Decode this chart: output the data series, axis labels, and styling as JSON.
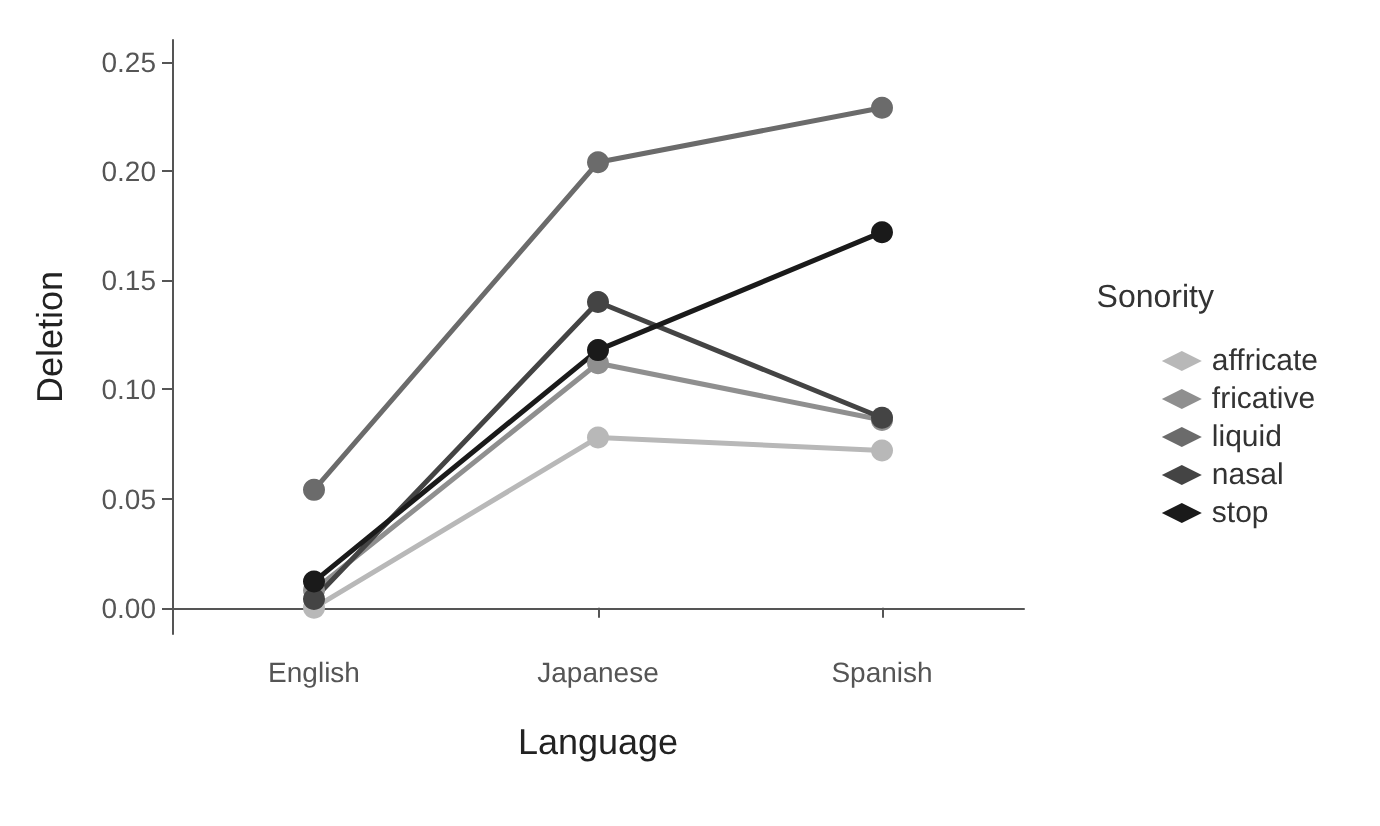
{
  "chart_data": {
    "type": "line",
    "xlabel": "Language",
    "ylabel": "Deletion",
    "legend_title": "Sonority",
    "legend": "right",
    "grid": false,
    "marker": "circle",
    "line_style": "solid",
    "categories": [
      "English",
      "Japanese",
      "Spanish"
    ],
    "ylim": [
      -0.012,
      0.26
    ],
    "yticks": [
      {
        "value": 0,
        "label": "0.00"
      },
      {
        "value": 0.05,
        "label": "0.05"
      },
      {
        "value": 0.1,
        "label": "0.10"
      },
      {
        "value": 0.15,
        "label": "0.15"
      },
      {
        "value": 0.2,
        "label": "0.20"
      },
      {
        "value": 0.25,
        "label": "0.25"
      }
    ],
    "series": [
      {
        "name": "affricate",
        "color": "#b8b8b8",
        "values": [
          0.0,
          0.078,
          0.072
        ]
      },
      {
        "name": "fricative",
        "color": "#8f8f8f",
        "values": [
          0.008,
          0.112,
          0.086
        ]
      },
      {
        "name": "liquid",
        "color": "#6b6b6b",
        "values": [
          0.054,
          0.204,
          0.229
        ]
      },
      {
        "name": "nasal",
        "color": "#444444",
        "values": [
          0.004,
          0.14,
          0.087
        ]
      },
      {
        "name": "stop",
        "color": "#1a1a1a",
        "values": [
          0.012,
          0.118,
          0.172
        ]
      }
    ]
  }
}
